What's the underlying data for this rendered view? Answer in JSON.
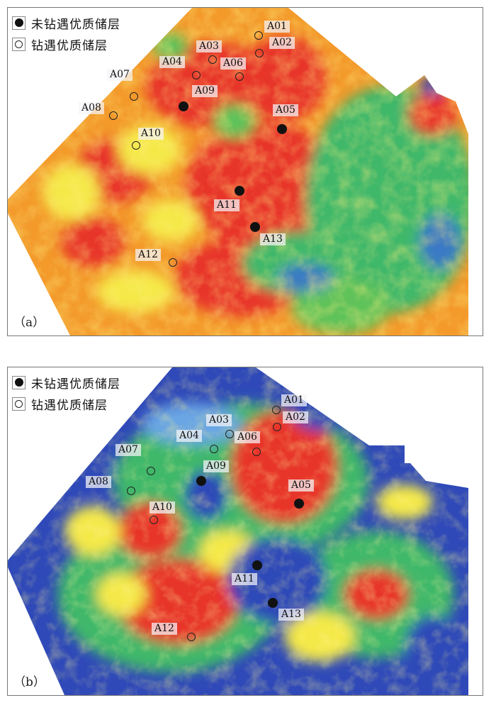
{
  "legend": {
    "undrilled_label": "未钻遇优质储层",
    "drilled_label": "钻遇优质储层"
  },
  "color_scale": {
    "low": "#2a3fb4",
    "mid_low": "#3fb86b",
    "mid": "#f5e94a",
    "mid_high": "#f4a12c",
    "high": "#e8352a"
  },
  "panels": [
    {
      "label": "（a）",
      "wells": [
        {
          "id": "A01",
          "type": "open"
        },
        {
          "id": "A02",
          "type": "open"
        },
        {
          "id": "A03",
          "type": "open"
        },
        {
          "id": "A04",
          "type": "open"
        },
        {
          "id": "A05",
          "type": "filled"
        },
        {
          "id": "A06",
          "type": "open"
        },
        {
          "id": "A07",
          "type": "open"
        },
        {
          "id": "A08",
          "type": "open"
        },
        {
          "id": "A09",
          "type": "filled"
        },
        {
          "id": "A10",
          "type": "open"
        },
        {
          "id": "A11",
          "type": "filled"
        },
        {
          "id": "A12",
          "type": "open"
        },
        {
          "id": "A13",
          "type": "filled"
        }
      ]
    },
    {
      "label": "（b）",
      "wells": [
        {
          "id": "A01",
          "type": "open"
        },
        {
          "id": "A02",
          "type": "open"
        },
        {
          "id": "A03",
          "type": "open"
        },
        {
          "id": "A04",
          "type": "open"
        },
        {
          "id": "A05",
          "type": "filled"
        },
        {
          "id": "A06",
          "type": "open"
        },
        {
          "id": "A07",
          "type": "open"
        },
        {
          "id": "A08",
          "type": "open"
        },
        {
          "id": "A09",
          "type": "filled"
        },
        {
          "id": "A10",
          "type": "open"
        },
        {
          "id": "A11",
          "type": "filled"
        },
        {
          "id": "A12",
          "type": "open"
        },
        {
          "id": "A13",
          "type": "filled"
        }
      ]
    }
  ]
}
